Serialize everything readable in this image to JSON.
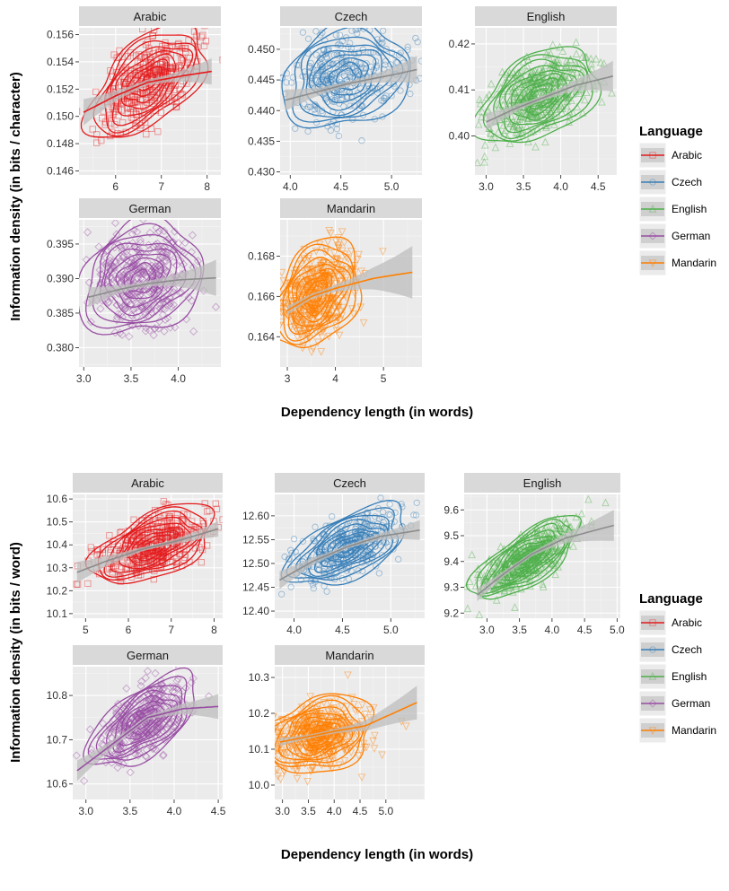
{
  "colors": {
    "Arabic": "#E41A1C",
    "Czech": "#377EB8",
    "English": "#4DAF4A",
    "German": "#984EA3",
    "Mandarin": "#FF7F00",
    "panel_background": "#EBEBEB",
    "grid": "#FFFFFF",
    "strip": "#D9D9D9",
    "smooth_band": "#BDBDBD",
    "smooth_line": "#8C8C8C"
  },
  "legend": {
    "title": "Language",
    "entries": [
      "Arabic",
      "Czech",
      "English",
      "German",
      "Mandarin"
    ]
  },
  "chart_data": [
    {
      "type": "scatter",
      "overlays": [
        "density-contours",
        "loess-smooth-with-ci"
      ],
      "xlabel": "Dependency length (in words)",
      "ylabel": "Information density (in bits / character)",
      "facets": [
        {
          "name": "Arabic",
          "xlim": [
            5.2,
            8.3
          ],
          "ylim": [
            0.1457,
            0.1565
          ],
          "xticks": [
            6,
            7,
            8
          ],
          "xtick_labels": [
            "6",
            "7",
            "8"
          ],
          "yticks": [
            0.146,
            0.148,
            0.15,
            0.152,
            0.154,
            0.156
          ],
          "ytick_labels": [
            "0.146",
            "0.148",
            "0.150",
            "0.152",
            "0.154",
            "0.156"
          ],
          "center": [
            6.7,
            0.1525
          ],
          "spread": [
            0.55,
            0.0017
          ],
          "corr": 0.55,
          "n": 380,
          "trend": [
            [
              5.3,
              0.1503
            ],
            [
              6.0,
              0.1515
            ],
            [
              6.7,
              0.1525
            ],
            [
              7.5,
              0.153
            ],
            [
              8.1,
              0.1533
            ]
          ]
        },
        {
          "name": "Czech",
          "xlim": [
            3.9,
            5.3
          ],
          "ylim": [
            0.4295,
            0.4535
          ],
          "xticks": [
            4.0,
            4.5,
            5.0
          ],
          "xtick_labels": [
            "4.0",
            "4.5",
            "5.0"
          ],
          "yticks": [
            0.43,
            0.435,
            0.44,
            0.445,
            0.45
          ],
          "ytick_labels": [
            "0.430",
            "0.435",
            "0.440",
            "0.445",
            "0.450"
          ],
          "center": [
            4.55,
            0.4455
          ],
          "spread": [
            0.27,
            0.0035
          ],
          "corr": 0.25,
          "n": 340,
          "trend": [
            [
              3.95,
              0.4417
            ],
            [
              4.3,
              0.4432
            ],
            [
              4.6,
              0.4445
            ],
            [
              5.0,
              0.4458
            ],
            [
              5.25,
              0.4467
            ]
          ]
        },
        {
          "name": "English",
          "xlim": [
            2.85,
            4.75
          ],
          "ylim": [
            0.3915,
            0.4235
          ],
          "xticks": [
            3.0,
            3.5,
            4.0,
            4.5
          ],
          "xtick_labels": [
            "3.0",
            "3.5",
            "4.0",
            "4.5"
          ],
          "yticks": [
            0.4,
            0.41,
            0.42
          ],
          "ytick_labels": [
            "0.40",
            "0.41",
            "0.42"
          ],
          "center": [
            3.7,
            0.4085
          ],
          "spread": [
            0.33,
            0.0045
          ],
          "corr": 0.45,
          "n": 480,
          "trend": [
            [
              3.0,
              0.403
            ],
            [
              3.4,
              0.406
            ],
            [
              3.8,
              0.4085
            ],
            [
              4.2,
              0.411
            ],
            [
              4.7,
              0.413
            ]
          ]
        },
        {
          "name": "German",
          "xlim": [
            2.95,
            4.45
          ],
          "ylim": [
            0.3772,
            0.3985
          ],
          "xticks": [
            3.0,
            3.5,
            4.0
          ],
          "xtick_labels": [
            "3.0",
            "3.5",
            "4.0"
          ],
          "yticks": [
            0.38,
            0.385,
            0.39,
            0.395
          ],
          "ytick_labels": [
            "0.380",
            "0.385",
            "0.390",
            "0.395"
          ],
          "center": [
            3.6,
            0.39
          ],
          "spread": [
            0.27,
            0.0035
          ],
          "corr": 0.15,
          "n": 420,
          "trend": [
            [
              3.05,
              0.3873
            ],
            [
              3.4,
              0.3885
            ],
            [
              3.7,
              0.3893
            ],
            [
              4.0,
              0.3898
            ],
            [
              4.4,
              0.3901
            ]
          ]
        },
        {
          "name": "Mandarin",
          "xlim": [
            2.85,
            5.8
          ],
          "ylim": [
            0.1625,
            0.1698
          ],
          "xticks": [
            3,
            4,
            5
          ],
          "xtick_labels": [
            "3",
            "4",
            "5"
          ],
          "yticks": [
            0.164,
            0.166,
            0.168
          ],
          "ytick_labels": [
            "0.164",
            "0.166",
            "0.168"
          ],
          "center": [
            3.6,
            0.1661
          ],
          "spread": [
            0.4,
            0.0011
          ],
          "corr": 0.3,
          "n": 500,
          "trend": [
            [
              3.0,
              0.1653
            ],
            [
              3.5,
              0.166
            ],
            [
              4.0,
              0.1664
            ],
            [
              4.8,
              0.1669
            ],
            [
              5.6,
              0.1672
            ]
          ]
        }
      ]
    },
    {
      "type": "scatter",
      "overlays": [
        "density-contours",
        "loess-smooth-with-ci"
      ],
      "xlabel": "Dependency length (in words)",
      "ylabel": "Information density (in bits / word)",
      "facets": [
        {
          "name": "Arabic",
          "xlim": [
            4.7,
            8.2
          ],
          "ylim": [
            10.08,
            10.62
          ],
          "xticks": [
            5,
            6,
            7,
            8
          ],
          "xtick_labels": [
            "5",
            "6",
            "7",
            "8"
          ],
          "yticks": [
            10.1,
            10.2,
            10.3,
            10.4,
            10.5,
            10.6
          ],
          "ytick_labels": [
            "10.1",
            "10.2",
            "10.3",
            "10.4",
            "10.5",
            "10.6"
          ],
          "center": [
            6.6,
            10.4
          ],
          "spread": [
            0.6,
            0.07
          ],
          "corr": 0.5,
          "n": 420,
          "trend": [
            [
              4.8,
              10.28
            ],
            [
              5.5,
              10.33
            ],
            [
              6.3,
              10.38
            ],
            [
              7.2,
              10.42
            ],
            [
              8.1,
              10.47
            ]
          ]
        },
        {
          "name": "Czech",
          "xlim": [
            3.8,
            5.35
          ],
          "ylim": [
            12.385,
            12.645
          ],
          "xticks": [
            4.0,
            4.5,
            5.0
          ],
          "xtick_labels": [
            "4.0",
            "4.5",
            "5.0"
          ],
          "yticks": [
            12.4,
            12.45,
            12.5,
            12.55,
            12.6
          ],
          "ytick_labels": [
            "12.40",
            "12.45",
            "12.50",
            "12.55",
            "12.60"
          ],
          "center": [
            4.55,
            12.535
          ],
          "spread": [
            0.27,
            0.035
          ],
          "corr": 0.6,
          "n": 420,
          "trend": [
            [
              3.85,
              12.465
            ],
            [
              4.2,
              12.505
            ],
            [
              4.55,
              12.535
            ],
            [
              4.9,
              12.557
            ],
            [
              5.3,
              12.57
            ]
          ]
        },
        {
          "name": "English",
          "xlim": [
            2.65,
            5.05
          ],
          "ylim": [
            9.18,
            9.66
          ],
          "xticks": [
            3.0,
            3.5,
            4.0,
            4.5,
            5.0
          ],
          "xtick_labels": [
            "3.0",
            "3.5",
            "4.0",
            "4.5",
            "5.0"
          ],
          "yticks": [
            9.2,
            9.3,
            9.4,
            9.5,
            9.6
          ],
          "ytick_labels": [
            "9.2",
            "9.3",
            "9.4",
            "9.5",
            "9.6"
          ],
          "center": [
            3.6,
            9.41
          ],
          "spread": [
            0.35,
            0.07
          ],
          "corr": 0.75,
          "n": 480,
          "trend": [
            [
              2.85,
              9.27
            ],
            [
              3.3,
              9.36
            ],
            [
              3.7,
              9.43
            ],
            [
              4.2,
              9.49
            ],
            [
              4.95,
              9.54
            ]
          ]
        },
        {
          "name": "German",
          "xlim": [
            2.85,
            4.55
          ],
          "ylim": [
            10.565,
            10.865
          ],
          "xticks": [
            3.0,
            3.5,
            4.0,
            4.5
          ],
          "xtick_labels": [
            "3.0",
            "3.5",
            "4.0",
            "4.5"
          ],
          "yticks": [
            10.6,
            10.7,
            10.8
          ],
          "ytick_labels": [
            "10.6",
            "10.7",
            "10.8"
          ],
          "center": [
            3.65,
            10.74
          ],
          "spread": [
            0.25,
            0.045
          ],
          "corr": 0.6,
          "n": 400,
          "trend": [
            [
              2.9,
              10.63
            ],
            [
              3.3,
              10.69
            ],
            [
              3.7,
              10.75
            ],
            [
              4.1,
              10.77
            ],
            [
              4.5,
              10.775
            ]
          ]
        },
        {
          "name": "Mandarin",
          "xlim": [
            2.85,
            5.75
          ],
          "ylim": [
            9.96,
            10.33
          ],
          "xticks": [
            3.0,
            3.5,
            4.0,
            4.5,
            5.0
          ],
          "xtick_labels": [
            "3.0",
            "3.5",
            "4.0",
            "4.5",
            "5.0"
          ],
          "yticks": [
            10.0,
            10.1,
            10.2,
            10.3
          ],
          "ytick_labels": [
            "10.0",
            "10.1",
            "10.2",
            "10.3"
          ],
          "center": [
            3.7,
            10.14
          ],
          "spread": [
            0.45,
            0.045
          ],
          "corr": 0.2,
          "n": 520,
          "trend": [
            [
              2.95,
              10.12
            ],
            [
              3.5,
              10.135
            ],
            [
              4.0,
              10.15
            ],
            [
              4.6,
              10.165
            ],
            [
              5.6,
              10.23
            ]
          ]
        }
      ]
    }
  ]
}
